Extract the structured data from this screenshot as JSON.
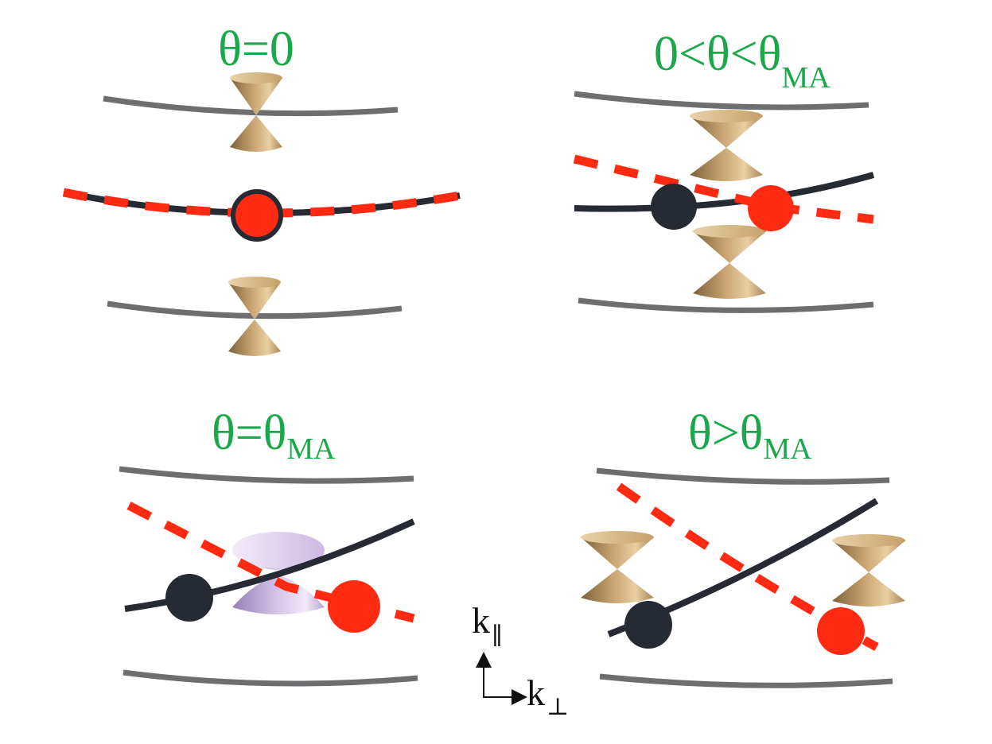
{
  "colors": {
    "title": "#1aa84a",
    "band_outer": "#6e6e70",
    "band_black": "#262a33",
    "band_red": "#ff2a12",
    "cone_gold_light": "#e9cfa2",
    "cone_gold_dark": "#7c6138",
    "cone_purple_light": "#f1e8f8",
    "cone_purple_dark": "#9680b8"
  },
  "panels": [
    {
      "id": "theta-zero",
      "title": {
        "main": "θ=0",
        "sub": ""
      }
    },
    {
      "id": "theta-between",
      "title": {
        "main": "0<θ<θ",
        "sub": "MA"
      }
    },
    {
      "id": "theta-magic",
      "title": {
        "main": "θ=θ",
        "sub": "MA"
      }
    },
    {
      "id": "theta-above",
      "title": {
        "main": "θ>θ",
        "sub": "MA"
      }
    }
  ],
  "axes": {
    "vertical": {
      "main": "k",
      "sub": "∥"
    },
    "horizontal": {
      "main": "k",
      "sub": "⊥"
    }
  },
  "icons": {
    "cone": "dirac-cone-icon",
    "node": "band-node-dot"
  }
}
